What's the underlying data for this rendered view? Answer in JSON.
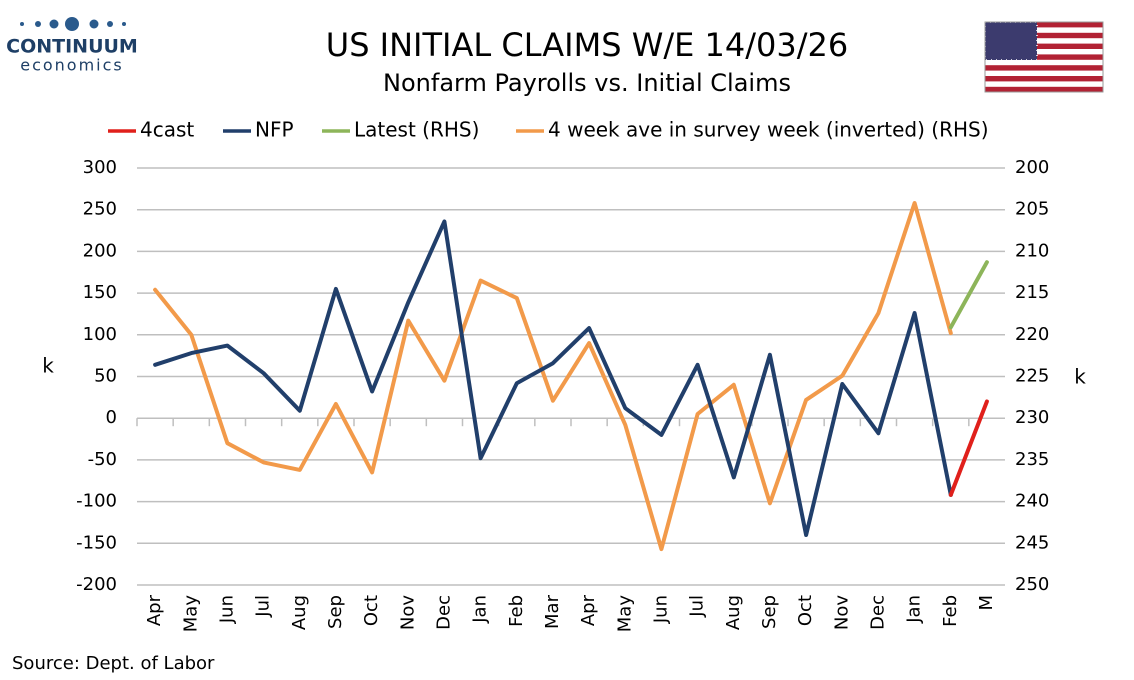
{
  "logo": {
    "name": "CONTINUUM",
    "tagline": "economics"
  },
  "chart_data": {
    "type": "line",
    "title": "US INITIAL CLAIMS W/E 14/03/26",
    "subtitle": "Nonfarm Payrolls vs. Initial Claims",
    "y_label": "k",
    "y2_label": "k",
    "source": "Source: Dept. of Labor",
    "categories": [
      "Apr",
      "May",
      "Jun",
      "Jul",
      "Aug",
      "Sep",
      "Oct",
      "Nov",
      "Dec",
      "Jan",
      "Feb",
      "Mar",
      "Apr",
      "May",
      "Jun",
      "Jul",
      "Aug",
      "Sep",
      "Oct",
      "Nov",
      "Dec",
      "Jan",
      "Feb",
      "M"
    ],
    "ylim": [
      -200,
      300
    ],
    "yticks": [
      -200,
      -150,
      -100,
      -50,
      0,
      50,
      100,
      150,
      200,
      250,
      300
    ],
    "y2lim": [
      250,
      200
    ],
    "y2ticks": [
      200,
      205,
      210,
      215,
      220,
      225,
      230,
      235,
      240,
      245,
      250
    ],
    "grid": true,
    "legend": "top",
    "series": [
      {
        "name": "4cast",
        "color": "#e0201b",
        "values": [
          null,
          null,
          null,
          null,
          null,
          null,
          null,
          null,
          null,
          null,
          null,
          null,
          null,
          null,
          null,
          null,
          null,
          null,
          null,
          null,
          null,
          null,
          -92,
          20
        ]
      },
      {
        "name": "NFP",
        "color": "#213f6b",
        "values": [
          64,
          78,
          87,
          54,
          9,
          155,
          32,
          139,
          236,
          -48,
          42,
          66,
          108,
          12,
          -20,
          64,
          -71,
          76,
          -140,
          41,
          -18,
          126,
          -92,
          null
        ]
      },
      {
        "name": "Latest (RHS)",
        "color": "#8db55a",
        "axis": "y2",
        "values": [
          null,
          null,
          null,
          null,
          null,
          null,
          null,
          null,
          null,
          null,
          null,
          null,
          null,
          null,
          null,
          null,
          null,
          null,
          null,
          null,
          null,
          null,
          219.1,
          211.3
        ]
      },
      {
        "name": "4 week ave in survey week (inverted) (RHS)",
        "color": "#f29a4a",
        "axis": "y2",
        "values": [
          214.6,
          220.0,
          233.0,
          235.3,
          236.2,
          228.3,
          236.5,
          218.3,
          225.5,
          213.5,
          215.6,
          227.9,
          221.0,
          230.8,
          245.7,
          229.5,
          226.0,
          240.2,
          227.8,
          224.9,
          217.4,
          204.2,
          219.8,
          null
        ]
      }
    ]
  }
}
